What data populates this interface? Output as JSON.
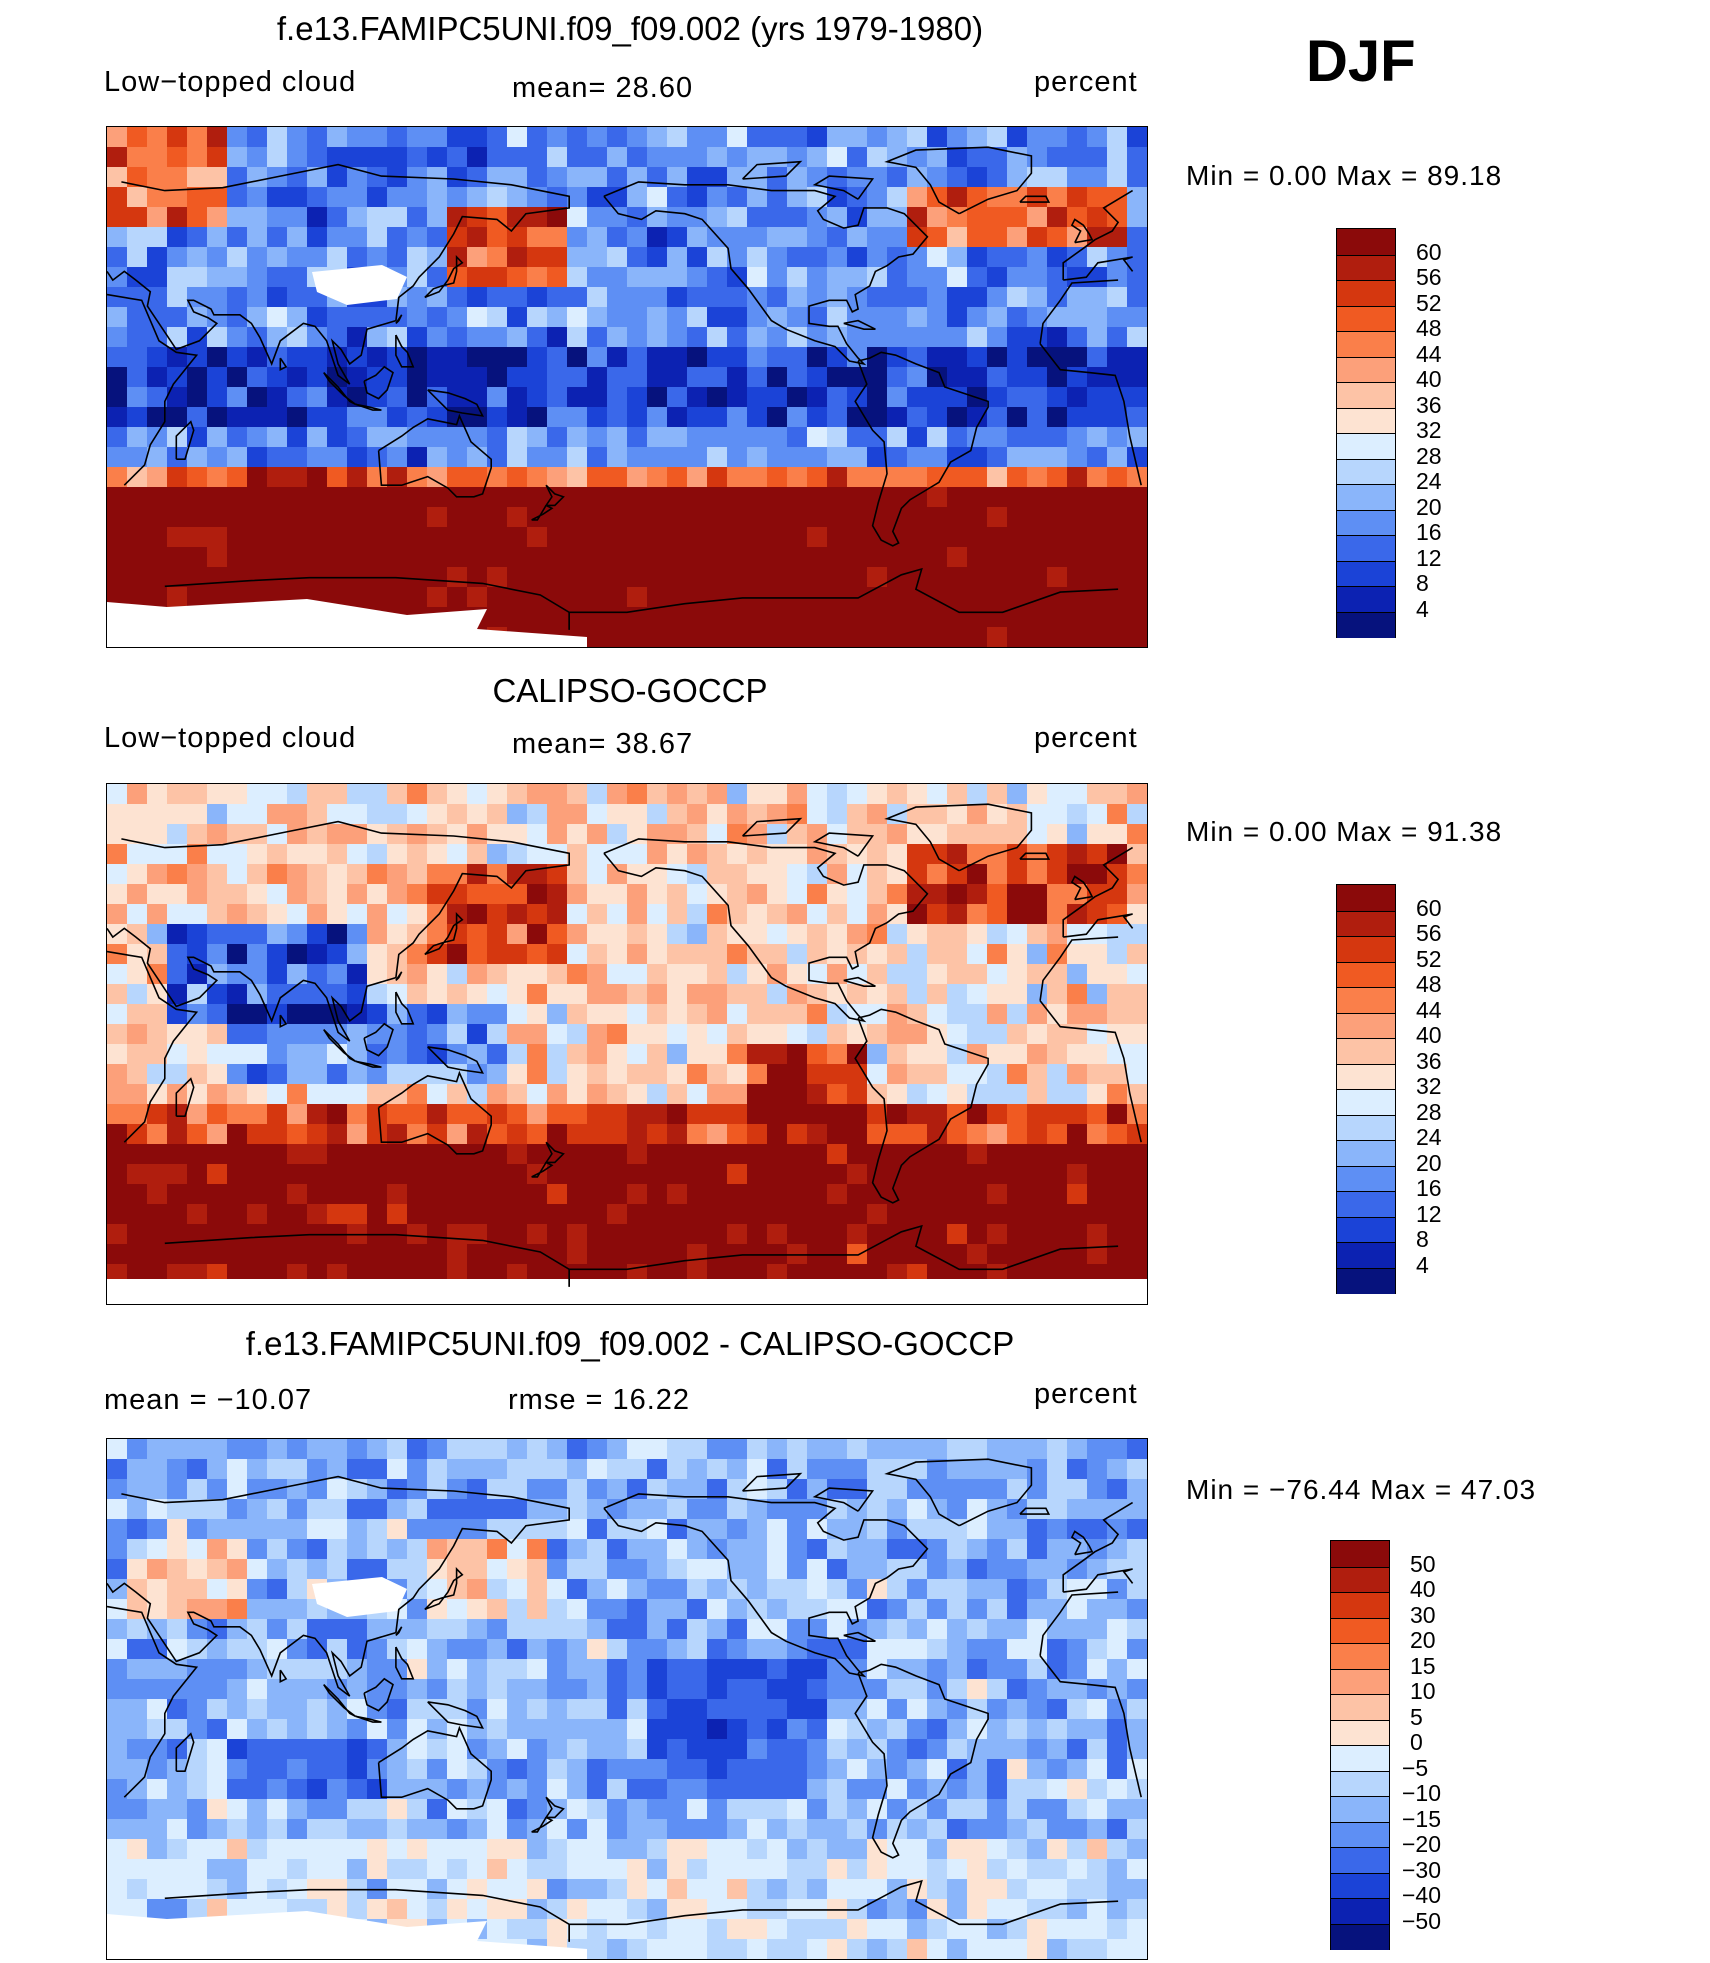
{
  "season": "DJF",
  "panels": [
    {
      "title": "f.e13.FAMIPC5UNI.f09_f09.002 (yrs 1979-1980)",
      "left_label": "Low−topped cloud",
      "center_label": "mean=   28.60",
      "right_label": "percent",
      "minmax": "Min  =     0.00  Max  =    89.18",
      "colorbar": {
        "labels": [
          "60",
          "56",
          "52",
          "48",
          "44",
          "40",
          "36",
          "32",
          "28",
          "24",
          "20",
          "16",
          "12",
          "8",
          "4"
        ],
        "colors": [
          "#8b0a0a",
          "#b01e0e",
          "#d5370f",
          "#f05a22",
          "#fa7f4a",
          "#fca07a",
          "#fdc3a6",
          "#fde3d2",
          "#dceeff",
          "#b7d6fd",
          "#8ab5fa",
          "#5e8ff4",
          "#3a68ea",
          "#1b43d7",
          "#0c22b2",
          "#06127d"
        ]
      },
      "map_style": "model"
    },
    {
      "title": "CALIPSO-GOCCP",
      "left_label": "Low−topped cloud",
      "center_label": "mean=   38.67",
      "right_label": "percent",
      "minmax": "Min  =     0.00  Max  =    91.38",
      "colorbar": {
        "labels": [
          "60",
          "56",
          "52",
          "48",
          "44",
          "40",
          "36",
          "32",
          "28",
          "24",
          "20",
          "16",
          "12",
          "8",
          "4"
        ],
        "colors": [
          "#8b0a0a",
          "#b01e0e",
          "#d5370f",
          "#f05a22",
          "#fa7f4a",
          "#fca07a",
          "#fdc3a6",
          "#fde3d2",
          "#dceeff",
          "#b7d6fd",
          "#8ab5fa",
          "#5e8ff4",
          "#3a68ea",
          "#1b43d7",
          "#0c22b2",
          "#06127d"
        ]
      },
      "map_style": "obs"
    },
    {
      "title": "f.e13.FAMIPC5UNI.f09_f09.002 - CALIPSO-GOCCP",
      "left_label": "mean  =  −10.07",
      "center_label": "rmse  =     16.22",
      "right_label": "percent",
      "minmax": "Min  = −76.44  Max  =     47.03",
      "colorbar": {
        "labels": [
          "50",
          "40",
          "30",
          "20",
          "15",
          "10",
          "5",
          "0",
          "−5",
          "−10",
          "−15",
          "−20",
          "−30",
          "−40",
          "−50"
        ],
        "colors": [
          "#8b0a0a",
          "#b01e0e",
          "#d5370f",
          "#f05a22",
          "#fa7f4a",
          "#fca07a",
          "#fdc3a6",
          "#fde3d2",
          "#dceeff",
          "#b7d6fd",
          "#8ab5fa",
          "#5e8ff4",
          "#3a68ea",
          "#1b43d7",
          "#0c22b2",
          "#06127d"
        ]
      },
      "map_style": "diff"
    }
  ]
}
